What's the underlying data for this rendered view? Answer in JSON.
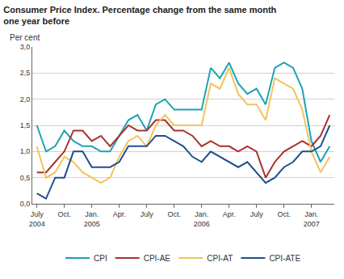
{
  "chart_data": {
    "type": "line",
    "title": "Consumer Price Index. Percentage change from the same month one year before",
    "y_label": "Per cent",
    "categories": [
      "July 2004",
      null,
      null,
      "Oct.",
      null,
      null,
      "Jan. 2005",
      null,
      null,
      "Apr.",
      null,
      null,
      "July",
      null,
      null,
      "Oct.",
      null,
      null,
      "Jan. 2006",
      null,
      null,
      "Apr.",
      null,
      null,
      "July",
      null,
      null,
      "Oct.",
      null,
      null,
      "Jan. 2007",
      null,
      null
    ],
    "series": [
      {
        "name": "CPI",
        "color": "#1ba3b5",
        "values": [
          1.5,
          1.0,
          1.1,
          1.4,
          1.2,
          1.1,
          1.1,
          1.0,
          1.0,
          1.3,
          1.6,
          1.7,
          1.4,
          1.9,
          2.0,
          1.8,
          1.8,
          1.8,
          1.8,
          2.6,
          2.4,
          2.7,
          2.3,
          2.1,
          2.2,
          1.9,
          2.6,
          2.7,
          2.6,
          2.2,
          1.2,
          0.8,
          1.1
        ]
      },
      {
        "name": "CPI-AE",
        "color": "#a8322d",
        "values": [
          0.6,
          0.6,
          0.8,
          1.0,
          1.4,
          1.4,
          1.2,
          1.3,
          1.1,
          1.3,
          1.5,
          1.4,
          1.4,
          1.6,
          1.6,
          1.4,
          1.4,
          1.3,
          1.1,
          1.2,
          1.1,
          1.1,
          1.0,
          1.1,
          1.0,
          0.5,
          0.8,
          1.0,
          1.1,
          1.2,
          1.1,
          1.3,
          1.7
        ]
      },
      {
        "name": "CPI-AT",
        "color": "#f2c35e",
        "values": [
          1.1,
          0.5,
          0.6,
          0.9,
          0.8,
          0.6,
          0.5,
          0.4,
          0.5,
          0.9,
          1.2,
          1.3,
          1.1,
          1.5,
          1.7,
          1.5,
          1.5,
          1.5,
          1.5,
          2.3,
          2.2,
          2.6,
          2.1,
          1.9,
          1.9,
          1.6,
          2.4,
          2.3,
          2.2,
          1.8,
          1.0,
          0.6,
          0.9
        ]
      },
      {
        "name": "CPI-ATE",
        "color": "#1f4f8f",
        "values": [
          0.2,
          0.1,
          0.5,
          0.5,
          1.0,
          1.0,
          0.7,
          0.7,
          0.7,
          0.8,
          1.1,
          1.1,
          1.1,
          1.3,
          1.3,
          1.2,
          1.1,
          0.9,
          0.8,
          1.0,
          0.9,
          0.8,
          0.7,
          0.8,
          0.6,
          0.4,
          0.5,
          0.7,
          0.8,
          1.0,
          1.0,
          1.1,
          1.5
        ]
      }
    ],
    "ylim": [
      0,
      3
    ],
    "yticks": [
      {
        "value": 0,
        "label": "0,0"
      },
      {
        "value": 0.5,
        "label": "0,5"
      },
      {
        "value": 1,
        "label": "1,0"
      },
      {
        "value": 1.5,
        "label": "1,5"
      },
      {
        "value": 2,
        "label": "2,0"
      },
      {
        "value": 2.5,
        "label": "2,5"
      },
      {
        "value": 3,
        "label": "3,0"
      }
    ],
    "grid": true,
    "legend": "bottom"
  }
}
